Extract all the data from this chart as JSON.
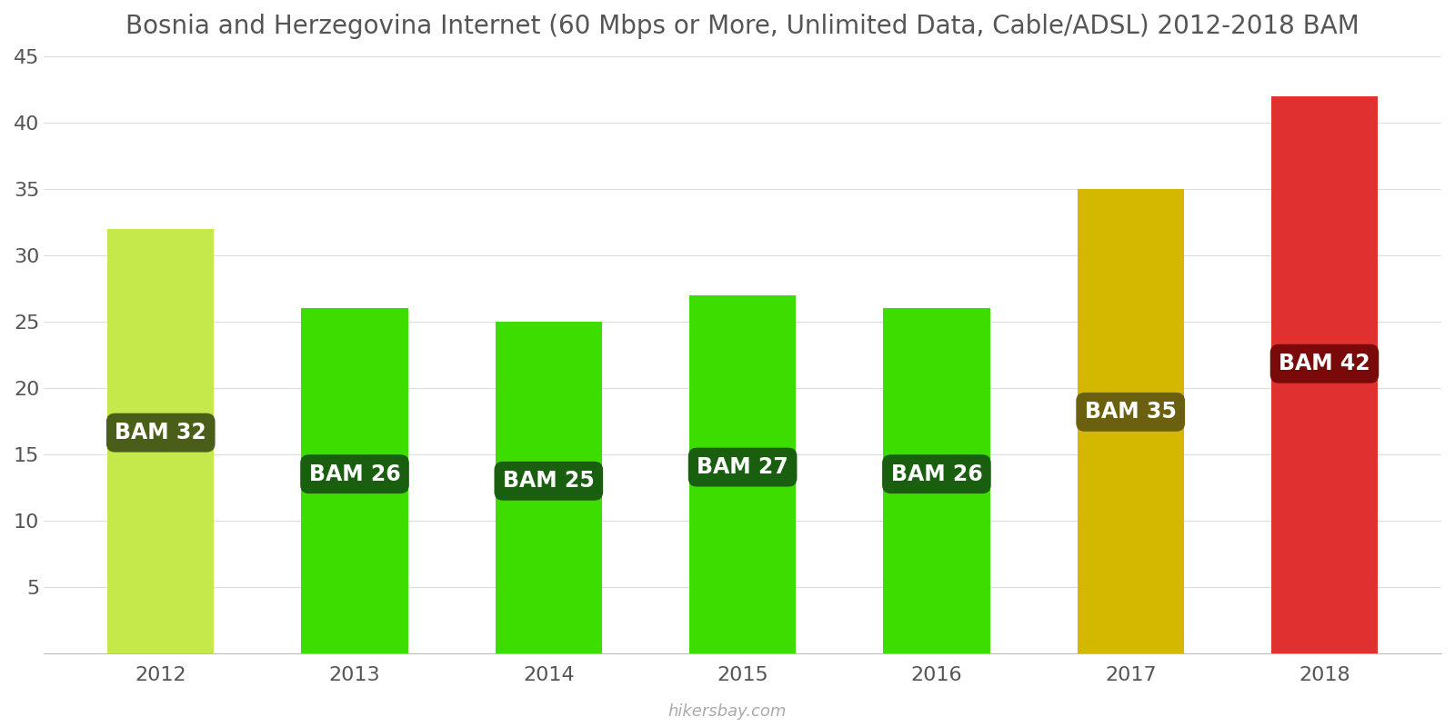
{
  "title": "Bosnia and Herzegovina Internet (60 Mbps or More, Unlimited Data, Cable/ADSL) 2012-2018 BAM",
  "years": [
    2012,
    2013,
    2014,
    2015,
    2016,
    2017,
    2018
  ],
  "values": [
    32,
    26,
    25,
    27,
    26,
    35,
    42
  ],
  "bar_colors": [
    "#c5e84a",
    "#3ddd00",
    "#3ddd00",
    "#3ddd00",
    "#3ddd00",
    "#d4b800",
    "#e03030"
  ],
  "label_bg_colors": [
    "#4a5e1a",
    "#1a5e10",
    "#1a5e10",
    "#1a5e10",
    "#1a5e10",
    "#6b6010",
    "#7a0a0a"
  ],
  "labels": [
    "BAM 32",
    "BAM 26",
    "BAM 25",
    "BAM 27",
    "BAM 26",
    "BAM 35",
    "BAM 42"
  ],
  "label_y_fractions": [
    0.52,
    0.52,
    0.52,
    0.52,
    0.52,
    0.52,
    0.52
  ],
  "ylim": [
    0,
    45
  ],
  "yticks": [
    0,
    5,
    10,
    15,
    20,
    25,
    30,
    35,
    40,
    45
  ],
  "background_color": "#ffffff",
  "title_fontsize": 20,
  "tick_fontsize": 16,
  "label_fontsize": 17,
  "bar_width": 0.55,
  "watermark": "hikersbay.com"
}
